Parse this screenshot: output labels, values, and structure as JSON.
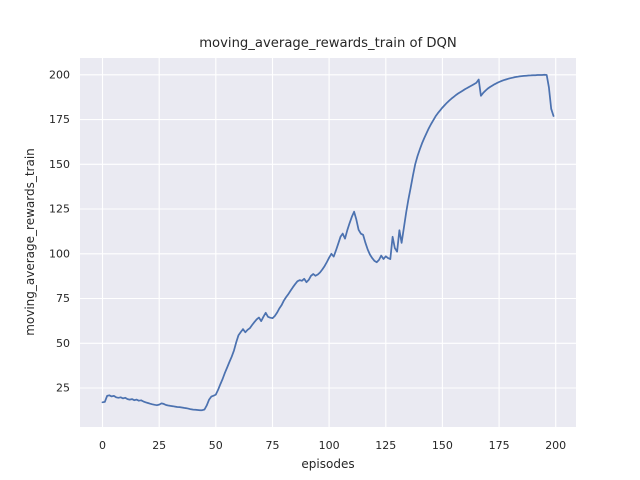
{
  "figure": {
    "background": "#ffffff",
    "plot_background": "#eaeaf2",
    "grid_color": "#ffffff",
    "text_color": "#262626"
  },
  "chart_data": {
    "type": "line",
    "title": "moving_average_rewards_train of DQN",
    "xlabel": "episodes",
    "ylabel": "moving_average_rewards_train",
    "grid": true,
    "legend": false,
    "line_color": "#4c72b0",
    "line_width": 1.75,
    "xticks": [
      0,
      25,
      50,
      75,
      100,
      125,
      150,
      175,
      200
    ],
    "yticks": [
      25,
      50,
      75,
      100,
      125,
      150,
      175,
      200
    ],
    "xlim": [
      -9.95,
      208.95
    ],
    "ylim": [
      3.2,
      209.4
    ],
    "x_start": 0,
    "x_step": 1,
    "series": [
      {
        "name": "moving_average_rewards_train",
        "color": "#4c72b0",
        "values": [
          17.0,
          17.2,
          20.6,
          20.9,
          20.3,
          20.6,
          19.8,
          19.5,
          19.8,
          19.2,
          19.5,
          18.8,
          18.5,
          18.8,
          18.2,
          18.5,
          17.9,
          18.1,
          17.5,
          17.0,
          16.6,
          16.2,
          15.9,
          15.6,
          15.4,
          15.7,
          16.4,
          16.1,
          15.5,
          15.2,
          15.0,
          14.8,
          14.6,
          14.4,
          14.3,
          14.1,
          13.9,
          13.7,
          13.4,
          13.1,
          12.9,
          12.8,
          12.7,
          12.6,
          12.6,
          13.0,
          15.3,
          18.4,
          20.2,
          20.7,
          21.3,
          24.0,
          27.2,
          30.0,
          33.5,
          36.5,
          39.5,
          42.5,
          46.0,
          50.5,
          54.5,
          56.3,
          57.9,
          56.1,
          57.5,
          58.4,
          60.2,
          61.8,
          63.3,
          64.4,
          62.4,
          64.8,
          67.0,
          64.8,
          64.3,
          64.0,
          65.2,
          67.0,
          69.4,
          71.2,
          73.8,
          75.8,
          77.4,
          79.4,
          81.3,
          83.0,
          84.6,
          85.3,
          84.9,
          86.0,
          84.1,
          85.4,
          87.7,
          88.7,
          87.7,
          88.4,
          89.6,
          91.2,
          93.1,
          95.4,
          97.8,
          100.0,
          98.4,
          101.8,
          105.6,
          109.5,
          111.3,
          108.5,
          113.2,
          117.0,
          120.6,
          123.5,
          119.2,
          113.4,
          111.2,
          110.6,
          106.2,
          102.4,
          99.6,
          97.6,
          96.0,
          95.3,
          96.6,
          99.0,
          97.1,
          98.6,
          97.6,
          97.0,
          109.5,
          103.2,
          101.2,
          113.2,
          106.1,
          114.6,
          123.2,
          130.4,
          137.0,
          143.9,
          150.0,
          154.6,
          158.3,
          161.7,
          164.7,
          167.5,
          170.1,
          172.5,
          174.7,
          176.8,
          178.6,
          180.2,
          181.7,
          183.1,
          184.4,
          185.6,
          186.7,
          187.7,
          188.7,
          189.6,
          190.4,
          191.2,
          192.0,
          192.7,
          193.4,
          194.1,
          194.8,
          195.6,
          197.4,
          188.3,
          189.9,
          191.2,
          192.3,
          193.2,
          194.0,
          194.7,
          195.4,
          196.0,
          196.5,
          197.0,
          197.4,
          197.8,
          198.1,
          198.4,
          198.7,
          198.9,
          199.1,
          199.3,
          199.4,
          199.5,
          199.6,
          199.7,
          199.8,
          199.8,
          199.9,
          199.9,
          199.9,
          200.0,
          199.9,
          193.0,
          181.0,
          177.0
        ]
      }
    ]
  }
}
